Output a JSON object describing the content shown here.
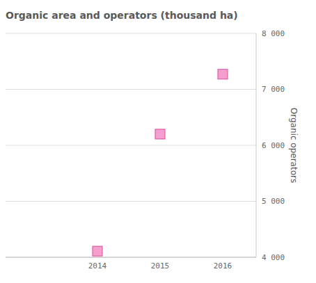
{
  "chart_data": {
    "type": "scatter",
    "title": "Organic area and operators (thousand ha)",
    "y_label": "Organic operators",
    "categories": [
      "2014",
      "2015",
      "2016"
    ],
    "values": [
      4110,
      6200,
      7270
    ],
    "color": "#f59fce",
    "marker": "square",
    "ylim": [
      4000,
      8000
    ],
    "yticks": [
      {
        "value": 4000,
        "label": "4 000"
      },
      {
        "value": 5000,
        "label": "5 000"
      },
      {
        "value": 6000,
        "label": "6 000"
      },
      {
        "value": 7000,
        "label": "7 000"
      },
      {
        "value": 8000,
        "label": "8 000"
      }
    ],
    "grid": true
  }
}
